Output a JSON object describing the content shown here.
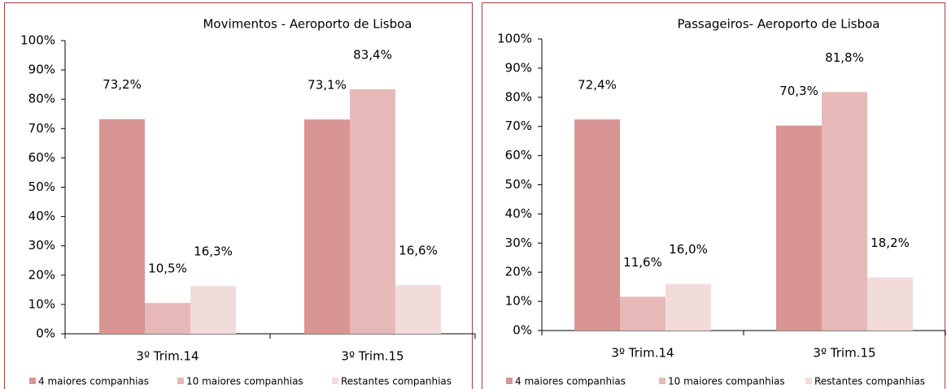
{
  "chart_data": [
    {
      "type": "bar",
      "title": "Movimentos - Aeroporto de Lisboa",
      "categories": [
        "3º Trim.14",
        "3º Trim.15"
      ],
      "series": [
        {
          "name": "4 maiores companhias",
          "color": "#d99594",
          "values": [
            73.2,
            73.1
          ],
          "value_labels": [
            "73,2%",
            "73,1%"
          ]
        },
        {
          "name": "10 maiores companhias",
          "color": "#e6b9b8",
          "values": [
            10.5,
            83.4
          ],
          "value_labels": [
            "10,5%",
            "83,4%"
          ]
        },
        {
          "name": "Restantes companhias",
          "color": "#f2dcdb",
          "values": [
            16.3,
            16.6
          ],
          "value_labels": [
            "16,3%",
            "16,6%"
          ]
        }
      ],
      "ylim": [
        0,
        100
      ],
      "yticks": [
        {
          "value": 0,
          "label": "0%"
        },
        {
          "value": 10,
          "label": "10%"
        },
        {
          "value": 20,
          "label": "20%"
        },
        {
          "value": 30,
          "label": "30%"
        },
        {
          "value": 40,
          "label": "40%"
        },
        {
          "value": 50,
          "label": "50%"
        },
        {
          "value": 60,
          "label": "60%"
        },
        {
          "value": 70,
          "label": "70%"
        },
        {
          "value": 80,
          "label": "80%"
        },
        {
          "value": 90,
          "label": "90%"
        },
        {
          "value": 100,
          "label": "100%"
        }
      ],
      "grid": false,
      "legend": "bottom"
    },
    {
      "type": "bar",
      "title": "Passageiros- Aeroporto de Lisboa",
      "categories": [
        "3º Trim.14",
        "3º Trim.15"
      ],
      "series": [
        {
          "name": "4 maiores companhias",
          "color": "#d99594",
          "values": [
            72.4,
            70.3
          ],
          "value_labels": [
            "72,4%",
            "70,3%"
          ]
        },
        {
          "name": "10 maiores companhias",
          "color": "#e6b9b8",
          "values": [
            11.6,
            81.8
          ],
          "value_labels": [
            "11,6%",
            "81,8%"
          ]
        },
        {
          "name": "Restantes companhias",
          "color": "#f2dcdb",
          "values": [
            16.0,
            18.2
          ],
          "value_labels": [
            "16,0%",
            "18,2%"
          ]
        }
      ],
      "ylim": [
        0,
        100
      ],
      "yticks": [
        {
          "value": 0,
          "label": "0%"
        },
        {
          "value": 10,
          "label": "10%"
        },
        {
          "value": 20,
          "label": "20%"
        },
        {
          "value": 30,
          "label": "30%"
        },
        {
          "value": 40,
          "label": "40%"
        },
        {
          "value": 50,
          "label": "50%"
        },
        {
          "value": 60,
          "label": "60%"
        },
        {
          "value": 70,
          "label": "70%"
        },
        {
          "value": 80,
          "label": "80%"
        },
        {
          "value": 90,
          "label": "90%"
        },
        {
          "value": 100,
          "label": "100%"
        }
      ],
      "grid": false,
      "legend": "bottom"
    }
  ]
}
